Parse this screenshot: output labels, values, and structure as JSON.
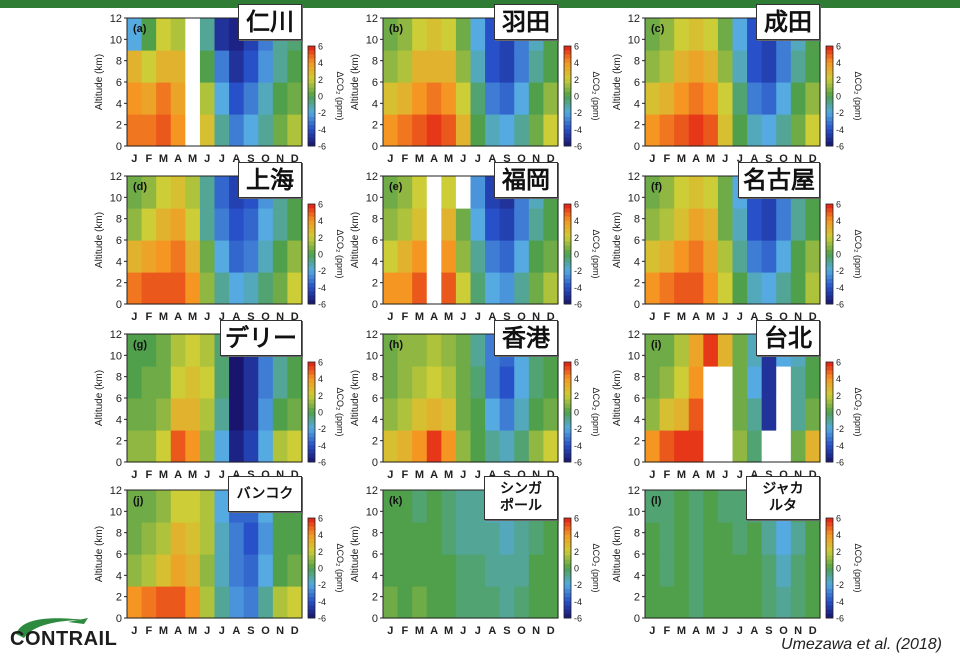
{
  "brand": {
    "logo_text": "CONTRAIL",
    "accent": "#2f7d34"
  },
  "citation": "Umezawa et al. (2018)",
  "chart_data": {
    "type": "heatmap",
    "xlabel": "",
    "ylabel": "Altitude (km)",
    "colorbar_label": "ΔCO₂ (ppm)",
    "months": [
      "J",
      "F",
      "M",
      "A",
      "M",
      "J",
      "J",
      "A",
      "S",
      "O",
      "N",
      "D"
    ],
    "yticks": [
      0,
      2,
      4,
      6,
      8,
      10,
      12
    ],
    "ylim": [
      0,
      12
    ],
    "cticks": [
      -6,
      -4,
      -2,
      0,
      2,
      4,
      6
    ],
    "clim": [
      -6,
      6
    ],
    "grid": false,
    "panels": [
      {
        "label": "(a)",
        "station": "仁川",
        "values": [
          [
            4.5,
            4,
            3,
            -2
          ],
          [
            4.5,
            3.5,
            2,
            0
          ],
          [
            5,
            4.5,
            3,
            2
          ],
          [
            4,
            3.5,
            3,
            1.5
          ],
          [
            null,
            null,
            null,
            null
          ],
          [
            2.5,
            1.5,
            0,
            -1
          ],
          [
            -1,
            -2,
            -3,
            -5
          ],
          [
            -3,
            -4,
            -5,
            -5.5
          ],
          [
            -2,
            -3,
            -4,
            -4.5
          ],
          [
            -1,
            -1.5,
            -2.5,
            -3
          ],
          [
            0.5,
            0,
            -1,
            -1
          ],
          [
            1.5,
            0.5,
            0,
            -0.5
          ]
        ]
      },
      {
        "label": "(b)",
        "station": "羽田",
        "values": [
          [
            4,
            2.5,
            1,
            0.5
          ],
          [
            4.5,
            3,
            1.5,
            1
          ],
          [
            5,
            4,
            3,
            2
          ],
          [
            5.5,
            4.5,
            3,
            2.5
          ],
          [
            5,
            4,
            3,
            2
          ],
          [
            3,
            2,
            1,
            0.5
          ],
          [
            0,
            -0.5,
            -1.5,
            -2
          ],
          [
            -1.5,
            -3,
            -4,
            -4
          ],
          [
            -2,
            -3.5,
            -4.5,
            -4.5
          ],
          [
            -1,
            -2,
            -3,
            -3
          ],
          [
            0.5,
            0,
            -1,
            -1.5
          ],
          [
            2,
            1,
            0,
            0
          ]
        ]
      },
      {
        "label": "(c)",
        "station": "成田",
        "values": [
          [
            4,
            2.5,
            1,
            0.5
          ],
          [
            4.5,
            3,
            1.5,
            1
          ],
          [
            5,
            4,
            3,
            2
          ],
          [
            5.5,
            4.5,
            3.5,
            2.5
          ],
          [
            5,
            4,
            3,
            2
          ],
          [
            2.5,
            2,
            1,
            0.5
          ],
          [
            0,
            -0.5,
            -1.5,
            -2
          ],
          [
            -1.5,
            -3,
            -4,
            -4
          ],
          [
            -2,
            -3.5,
            -4.5,
            -4.5
          ],
          [
            -1,
            -2,
            -3,
            -3
          ],
          [
            0.5,
            0,
            -1,
            -1.5
          ],
          [
            2,
            1,
            0,
            0
          ]
        ]
      },
      {
        "label": "(d)",
        "station": "上海",
        "values": [
          [
            4.5,
            3,
            1,
            0.5
          ],
          [
            5,
            3.5,
            2,
            1
          ],
          [
            5,
            4,
            3,
            2
          ],
          [
            5,
            4.5,
            3.5,
            2.5
          ],
          [
            4,
            3,
            2,
            1.5
          ],
          [
            1,
            0.5,
            -1,
            -1
          ],
          [
            -1,
            -2,
            -3,
            -3.5
          ],
          [
            -2,
            -3.5,
            -4,
            -4.5
          ],
          [
            -1.5,
            -3,
            -3.5,
            -4
          ],
          [
            -0.5,
            -1.5,
            -2,
            -2.5
          ],
          [
            0.5,
            0,
            -1,
            -1
          ],
          [
            2,
            1,
            0,
            0
          ]
        ]
      },
      {
        "label": "(e)",
        "station": "福岡",
        "values": [
          [
            4,
            2,
            1,
            0.5
          ],
          [
            4,
            3,
            1.5,
            1
          ],
          [
            5,
            4,
            2.5,
            2
          ],
          [
            null,
            null,
            null,
            null
          ],
          [
            5,
            4,
            3,
            2
          ],
          [
            2,
            1,
            0.5,
            null
          ],
          [
            -0.5,
            -1,
            -2,
            -2.5
          ],
          [
            -2,
            -3,
            -4,
            -4.5
          ],
          [
            -2.5,
            -3.5,
            -4.5,
            -5
          ],
          [
            -1,
            -2,
            -3,
            -3
          ],
          [
            0.5,
            0,
            -1,
            -1.5
          ],
          [
            1.5,
            0.5,
            0,
            0
          ]
        ]
      },
      {
        "label": "(f)",
        "station": "名古屋",
        "values": [
          [
            4,
            2.5,
            1,
            0.5
          ],
          [
            4.5,
            3,
            1.5,
            1
          ],
          [
            5,
            4,
            2.5,
            2
          ],
          [
            5,
            4.5,
            3.5,
            2.5
          ],
          [
            4,
            3.5,
            3,
            2
          ],
          [
            2,
            1.5,
            0.5,
            0.5
          ],
          [
            0,
            -1,
            -1.5,
            -2
          ],
          [
            -1.5,
            -3,
            -4,
            -4
          ],
          [
            -2,
            -3.5,
            -4.5,
            -4.5
          ],
          [
            -1,
            -2,
            -3,
            -3
          ],
          [
            0,
            0,
            -1,
            -1
          ],
          [
            1.5,
            1,
            0,
            0
          ]
        ]
      },
      {
        "label": "(g)",
        "station": "デリー",
        "values": [
          [
            1,
            0.5,
            0,
            0
          ],
          [
            1,
            0.5,
            0.5,
            0
          ],
          [
            2,
            1,
            0.5,
            0.5
          ],
          [
            5,
            3,
            2,
            1.5
          ],
          [
            4,
            3,
            2.5,
            2
          ],
          [
            1,
            1.5,
            2,
            1.5
          ],
          [
            -2,
            -1,
            -0.5,
            -0.5
          ],
          [
            -5.5,
            -6,
            -6,
            -6
          ],
          [
            -4.5,
            -5,
            -5,
            -5
          ],
          [
            -2,
            -2.5,
            -3,
            -3
          ],
          [
            1.5,
            0,
            -1,
            -1
          ],
          [
            2,
            0.5,
            0,
            0
          ]
        ]
      },
      {
        "label": "(h)",
        "station": "香港",
        "values": [
          [
            2.5,
            1,
            0.5,
            0.5
          ],
          [
            3,
            1.5,
            1,
            1
          ],
          [
            4,
            2.5,
            1.5,
            1
          ],
          [
            5.5,
            3,
            2,
            1.5
          ],
          [
            4,
            2.5,
            1.5,
            1
          ],
          [
            1,
            0.5,
            0.5,
            0.5
          ],
          [
            0,
            0,
            -0.5,
            -1
          ],
          [
            -1,
            -2,
            -3,
            -3
          ],
          [
            -1.5,
            -3,
            -4,
            -3.5
          ],
          [
            -0.5,
            -1.5,
            -2,
            -2
          ],
          [
            1,
            0,
            -0.5,
            -0.5
          ],
          [
            2,
            0.5,
            0,
            0
          ]
        ]
      },
      {
        "label": "(i)",
        "station": "台北",
        "values": [
          [
            4,
            1,
            0.5,
            0.5
          ],
          [
            5,
            2.5,
            1,
            0.5
          ],
          [
            5.5,
            3,
            2,
            1.5
          ],
          [
            5.5,
            5,
            4,
            3.5
          ],
          [
            null,
            null,
            null,
            5.5
          ],
          [
            null,
            null,
            null,
            3
          ],
          [
            1,
            0.5,
            0.5,
            0.5
          ],
          [
            -0.5,
            -1,
            -2,
            -1.5
          ],
          [
            null,
            -5,
            -5,
            -5
          ],
          [
            null,
            null,
            null,
            -2
          ],
          [
            0.5,
            -1,
            -1,
            -1.5
          ],
          [
            3,
            0.5,
            0,
            0
          ]
        ]
      },
      {
        "label": "(j)",
        "station": "バンコク",
        "values": [
          [
            4,
            1,
            0.5,
            0.5
          ],
          [
            4.5,
            1.5,
            1,
            0.5
          ],
          [
            5,
            2.5,
            1.5,
            1
          ],
          [
            5,
            3.5,
            3,
            2
          ],
          [
            4,
            3,
            2.5,
            2
          ],
          [
            1.5,
            1,
            1.5,
            1.5
          ],
          [
            -1,
            -1.5,
            -1.5,
            -2
          ],
          [
            -2.5,
            -3,
            -3,
            -3.5
          ],
          [
            -3,
            -3.5,
            -4,
            -3.5
          ],
          [
            -1,
            -2,
            -2.5,
            -2
          ],
          [
            1.5,
            0,
            0,
            0
          ],
          [
            2,
            0.5,
            0,
            0
          ]
        ]
      },
      {
        "label": "(k)",
        "station": "シンガ\nポール",
        "values": [
          [
            0.5,
            0,
            0,
            0
          ],
          [
            0,
            0,
            0,
            0
          ],
          [
            0.5,
            0,
            0,
            -0.5
          ],
          [
            0,
            0,
            0,
            0
          ],
          [
            0,
            0,
            -0.5,
            -0.5
          ],
          [
            -0.5,
            -0.5,
            -1,
            -1
          ],
          [
            -0.5,
            -0.5,
            -1,
            -1
          ],
          [
            -0.5,
            -1,
            -1,
            -1.5
          ],
          [
            -1,
            -1,
            -1.5,
            -1.5
          ],
          [
            -0.5,
            -1,
            -1,
            -1
          ],
          [
            0,
            0,
            -0.5,
            -0.5
          ],
          [
            0,
            0,
            0,
            0
          ]
        ]
      },
      {
        "label": "(l)",
        "station": "ジャカ\nルタ",
        "values": [
          [
            0,
            0,
            0,
            -0.5
          ],
          [
            0,
            -0.5,
            -0.5,
            -0.5
          ],
          [
            0,
            0,
            0,
            0
          ],
          [
            -0.5,
            -0.5,
            -0.5,
            -0.5
          ],
          [
            0,
            0,
            0,
            0
          ],
          [
            0,
            0,
            0,
            -0.5
          ],
          [
            0,
            0,
            -0.5,
            -0.5
          ],
          [
            0,
            0,
            0,
            -0.5
          ],
          [
            -0.5,
            -0.5,
            -1,
            -1
          ],
          [
            -1,
            -1.5,
            -2,
            -2
          ],
          [
            -0.5,
            -0.5,
            -1,
            -0.5
          ],
          [
            0,
            0,
            0,
            0
          ]
        ]
      }
    ]
  }
}
